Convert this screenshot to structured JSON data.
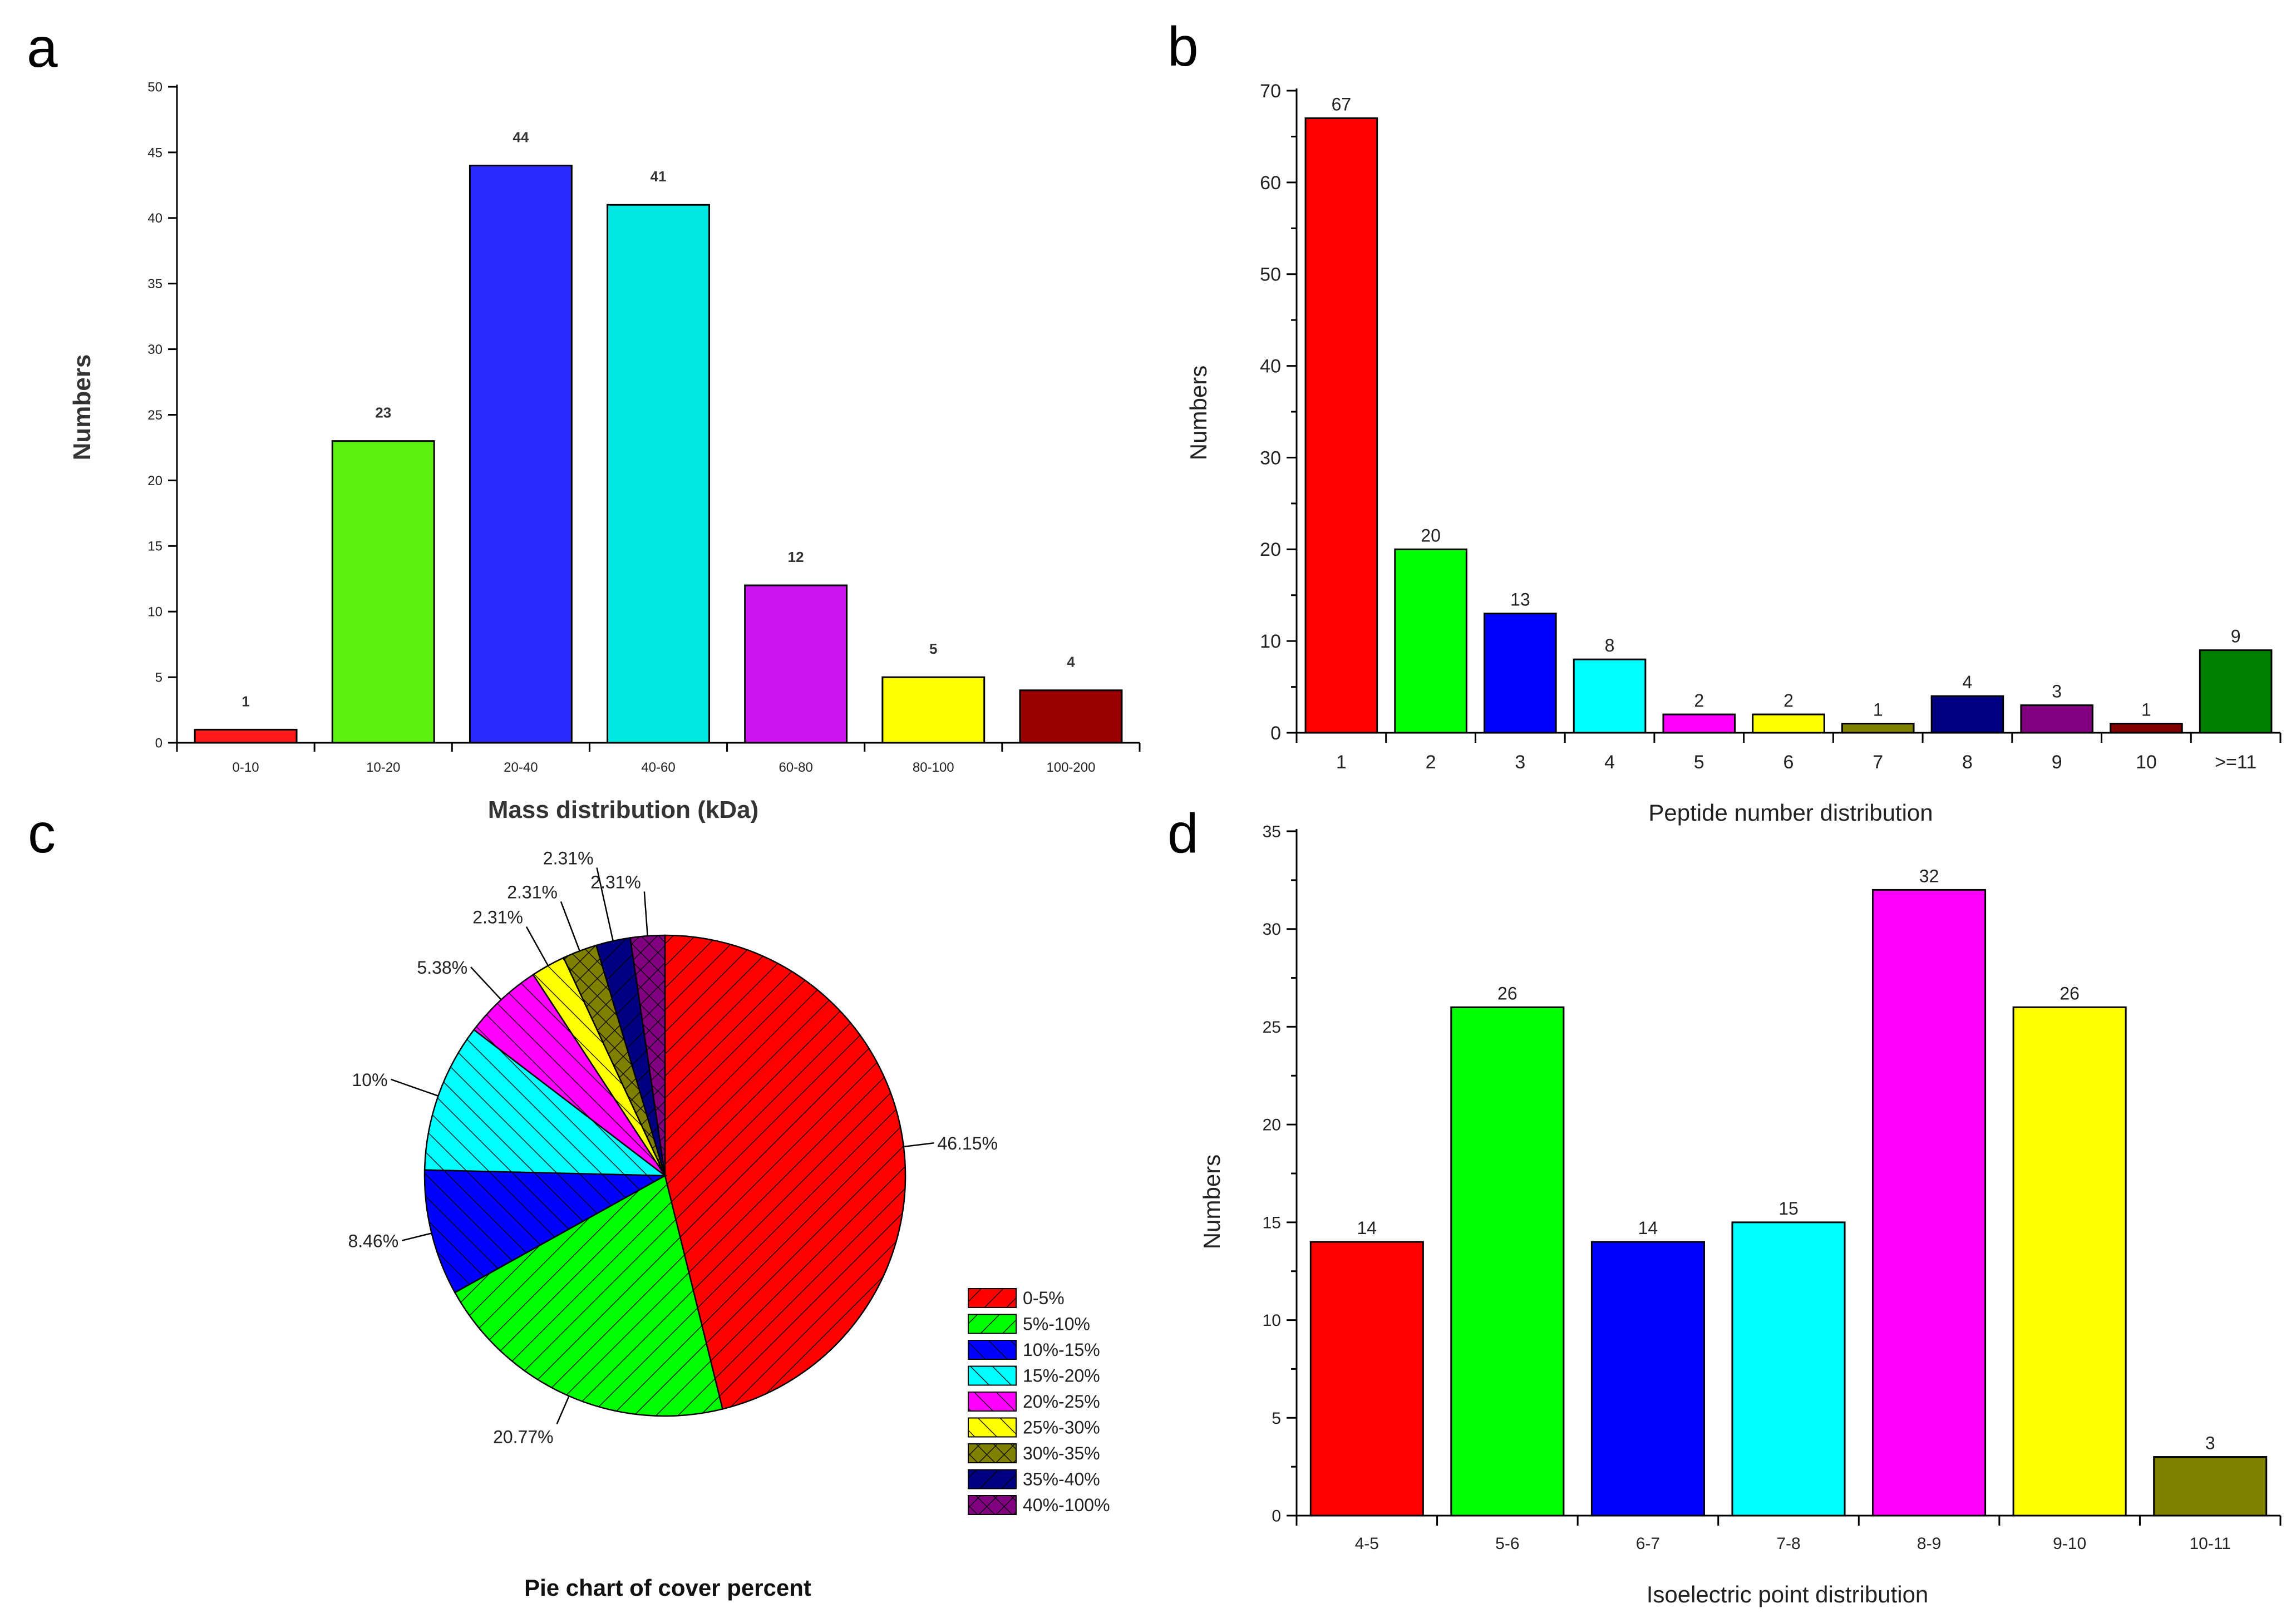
{
  "chart_data": [
    {
      "panel": "a",
      "type": "bar",
      "categories": [
        "0-10",
        "10-20",
        "20-40",
        "40-60",
        "60-80",
        "80-100",
        "100-200"
      ],
      "values": [
        1,
        23,
        44,
        41,
        12,
        5,
        4
      ],
      "colors": [
        "#ff1a1a",
        "#5bf00f",
        "#2a2aff",
        "#00e8e0",
        "#cc14f0",
        "#ffff00",
        "#990000"
      ],
      "xlabel": "Mass distribution (kDa)",
      "ylabel": "Numbers",
      "ylim": [
        0,
        50
      ],
      "yticks": [
        "0",
        "5",
        "10",
        "15",
        "20",
        "25",
        "30",
        "35",
        "40",
        "45",
        "50"
      ],
      "grid": false
    },
    {
      "panel": "b",
      "type": "bar",
      "categories": [
        "1",
        "2",
        "3",
        "4",
        "5",
        "6",
        "7",
        "8",
        "9",
        "10",
        ">=11"
      ],
      "values": [
        67,
        20,
        13,
        8,
        2,
        2,
        1,
        4,
        3,
        1,
        9
      ],
      "colors": [
        "#ff0000",
        "#00ff00",
        "#0000ff",
        "#00ffff",
        "#ff00ff",
        "#ffff00",
        "#808000",
        "#000080",
        "#800080",
        "#800000",
        "#008000"
      ],
      "xlabel": "Peptide number distribution",
      "ylabel": "Numbers",
      "ylim": [
        0,
        70
      ],
      "yticks": [
        "0",
        "10",
        "20",
        "30",
        "40",
        "50",
        "60",
        "70"
      ],
      "grid": false
    },
    {
      "panel": "c",
      "type": "pie",
      "title": "Pie chart of cover percent",
      "labels": [
        "0-5%",
        "5%-10%",
        "10%-15%",
        "15%-20%",
        "20%-25%",
        "25%-30%",
        "30%-35%",
        "35%-40%",
        "40%-100%"
      ],
      "values": [
        46.15,
        20.77,
        8.46,
        10,
        5.38,
        2.31,
        2.31,
        2.31,
        2.31
      ],
      "value_labels": [
        "46.15%",
        "20.77%",
        "8.46%",
        "10%",
        "5.38%",
        "2.31%",
        "2.31%",
        "2.31%",
        "2.31%"
      ],
      "colors": [
        "#ff0000",
        "#00ff00",
        "#0000ff",
        "#00ffff",
        "#ff00ff",
        "#ffff00",
        "#808000",
        "#000080",
        "#800080"
      ],
      "legend": "right"
    },
    {
      "panel": "d",
      "type": "bar",
      "categories": [
        "4-5",
        "5-6",
        "6-7",
        "7-8",
        "8-9",
        "9-10",
        "10-11"
      ],
      "values": [
        14,
        26,
        14,
        15,
        32,
        26,
        3
      ],
      "colors": [
        "#ff0000",
        "#00ff00",
        "#0000ff",
        "#00ffff",
        "#ff00ff",
        "#ffff00",
        "#808000"
      ],
      "xlabel": "Isoelectric point distribution",
      "ylabel": "Numbers",
      "ylim": [
        0,
        35
      ],
      "yticks": [
        "0",
        "5",
        "10",
        "15",
        "20",
        "25",
        "30",
        "35"
      ],
      "grid": false
    }
  ],
  "panel_letters": [
    "a",
    "b",
    "c",
    "d"
  ]
}
